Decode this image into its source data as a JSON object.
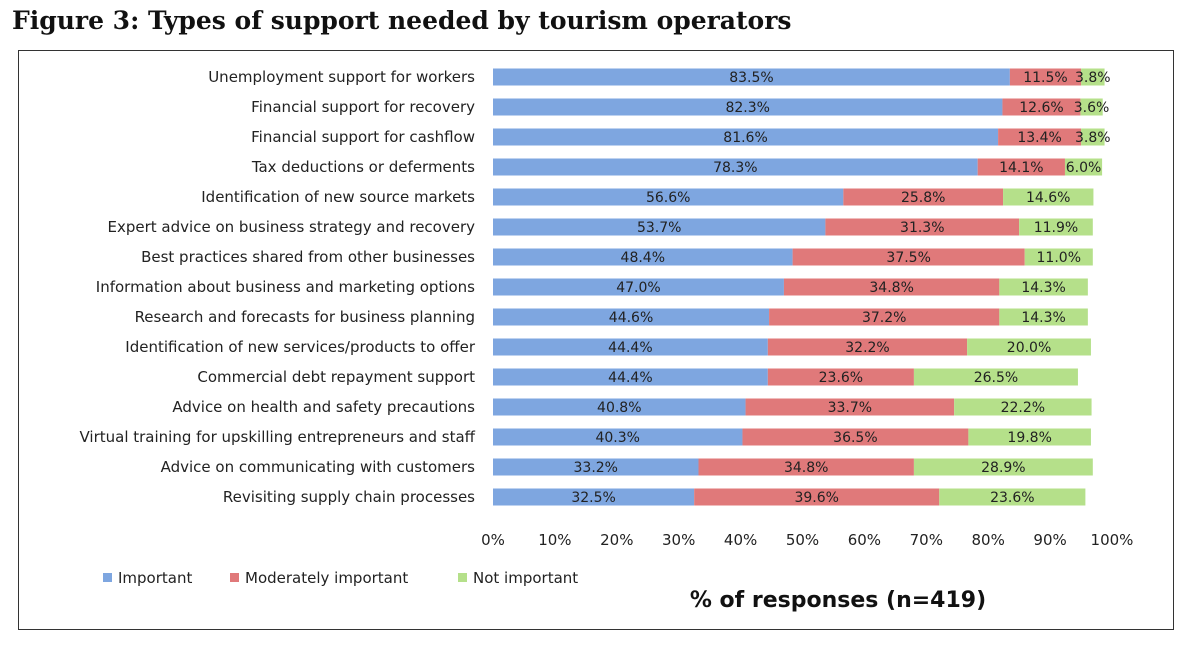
{
  "figure_title": "Figure 3: Types of support needed by tourism operators",
  "chart_data": {
    "type": "bar",
    "orientation": "horizontal",
    "stacked": true,
    "categories": [
      "Unemployment support for workers",
      "Financial support for recovery",
      "Financial support for cashflow",
      "Tax deductions or deferments",
      "Identification of new source markets",
      "Expert advice on business strategy and recovery",
      "Best practices shared from other businesses",
      "Information about business and marketing options",
      "Research and forecasts for business planning",
      "Identification of new services/products to offer",
      "Commercial debt repayment support",
      "Advice on health and safety precautions",
      "Virtual training for upskilling entrepreneurs and staff",
      "Advice on communicating with customers",
      "Revisiting supply chain processes"
    ],
    "series": [
      {
        "name": "Important",
        "color": "#7ea6e0",
        "values": [
          83.5,
          82.3,
          81.6,
          78.3,
          56.6,
          53.7,
          48.4,
          47.0,
          44.6,
          44.4,
          44.4,
          40.8,
          40.3,
          33.2,
          32.5
        ],
        "labels": [
          "83.5%",
          "82.3%",
          "81.6%",
          "78.3%",
          "56.6%",
          "53.7%",
          "48.4%",
          "47.0%",
          "44.6%",
          "44.4%",
          "44.4%",
          "40.8%",
          "40.3%",
          "33.2%",
          "32.5%"
        ]
      },
      {
        "name": "Moderately important",
        "color": "#e0797a",
        "values": [
          11.5,
          12.6,
          13.4,
          14.1,
          25.8,
          31.3,
          37.5,
          34.8,
          37.2,
          32.2,
          23.6,
          33.7,
          36.5,
          34.8,
          39.6
        ],
        "labels": [
          "11.5%",
          "12.6%",
          "13.4%",
          "14.1%",
          "25.8%",
          "31.3%",
          "37.5%",
          "34.8%",
          "37.2%",
          "32.2%",
          "23.6%",
          "33.7%",
          "36.5%",
          "34.8%",
          "39.6%"
        ]
      },
      {
        "name": "Not important",
        "color": "#b5e08a",
        "values": [
          3.8,
          3.6,
          3.8,
          6.0,
          14.6,
          11.9,
          11.0,
          14.3,
          14.3,
          20.0,
          26.5,
          22.2,
          19.8,
          28.9,
          23.6
        ],
        "labels": [
          "3.8%",
          "3.6%",
          "3.8%",
          "6.0%",
          "14.6%",
          "11.9%",
          "11.0%",
          "14.3%",
          "14.3%",
          "20.0%",
          "26.5%",
          "22.2%",
          "19.8%",
          "28.9%",
          "23.6%"
        ]
      }
    ],
    "x_ticks": [
      "0%",
      "10%",
      "20%",
      "30%",
      "40%",
      "50%",
      "60%",
      "70%",
      "80%",
      "90%",
      "100%"
    ],
    "xlim": [
      0,
      100
    ],
    "xlabel": "% of responses (n=419)",
    "legend": [
      "Important",
      "Moderately important",
      "Not important"
    ],
    "legend_position": "bottom-left",
    "grid": false
  }
}
